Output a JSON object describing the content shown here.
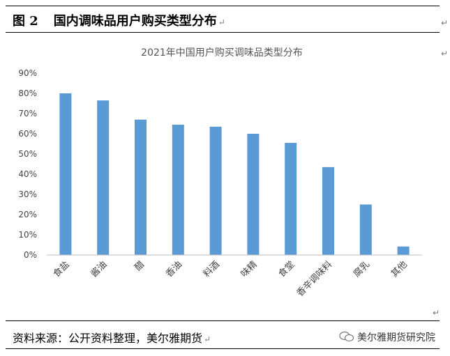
{
  "figure": {
    "label": "图 2",
    "title": "国内调味品用户购买类型分布"
  },
  "source": "资料来源：公开资料整理，美尔雅期货",
  "watermark": "美尔雅期货研究院",
  "colors": {
    "bar": "#5b9bd5",
    "axis": "#bfbfbf"
  },
  "chart_data": {
    "type": "bar",
    "title": "2021年中国用户购买调味品类型分布",
    "categories": [
      "食盐",
      "酱油",
      "醋",
      "香油",
      "料酒",
      "味精",
      "食堂",
      "香辛调味料",
      "腐乳",
      "其他"
    ],
    "values": [
      80,
      76.5,
      67,
      64.5,
      63.5,
      60,
      55.5,
      43.5,
      25,
      4.2
    ],
    "yticks": [
      "0%",
      "10%",
      "20%",
      "30%",
      "40%",
      "50%",
      "60%",
      "70%",
      "80%",
      "90%"
    ],
    "ylim": [
      0,
      90
    ],
    "unit": "%",
    "grid": false,
    "legend": "none"
  }
}
